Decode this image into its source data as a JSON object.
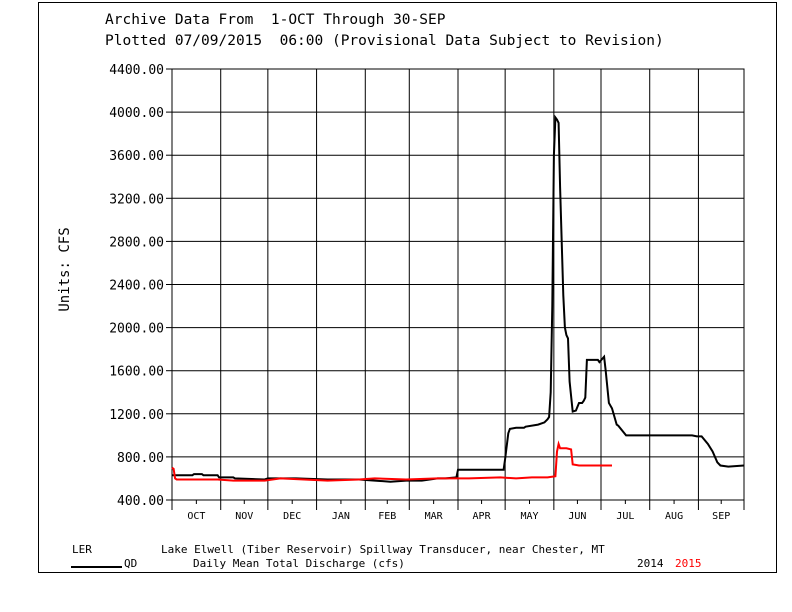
{
  "header": {
    "line1": "Archive Data From  1-OCT Through 30-SEP",
    "line2": "Plotted 07/09/2015  06:00 (Provisional Data Subject to Revision)"
  },
  "footer": {
    "station_code": "LER",
    "station_name": "Lake Elwell (Tiber Reservoir) Spillway Transducer, near Chester, MT",
    "param_code": "QD",
    "param_name": "Daily Mean Total Discharge (cfs)",
    "year_2014": "2014",
    "year_2015": "2015"
  },
  "chart_data": {
    "type": "line",
    "ylabel": "Units: CFS",
    "ylim": [
      400,
      4400
    ],
    "yticks": [
      "400.00",
      "800.00",
      "1200.00",
      "1600.00",
      "2000.00",
      "2400.00",
      "2800.00",
      "3200.00",
      "3600.00",
      "4000.00",
      "4400.00"
    ],
    "months": [
      "OCT",
      "NOV",
      "DEC",
      "JAN",
      "FEB",
      "MAR",
      "APR",
      "MAY",
      "JUN",
      "JUL",
      "AUG",
      "SEP"
    ],
    "x_unit": "day of water year (1 = 1-OCT)",
    "grid": true,
    "colors": {
      "2014": "#000000",
      "2015": "#ff0000"
    },
    "series": [
      {
        "name": "2014",
        "color": "#000000",
        "x": [
          1,
          14,
          15,
          20,
          21,
          30,
          31,
          40,
          41,
          60,
          62,
          80,
          100,
          120,
          130,
          140,
          150,
          152,
          160,
          165,
          170,
          175,
          182,
          183,
          200,
          212,
          213,
          215,
          216,
          220,
          225,
          226,
          234,
          238,
          240,
          241,
          242,
          243,
          244,
          245,
          246,
          247,
          248,
          250,
          251,
          252,
          253,
          254,
          256,
          258,
          260,
          262,
          263,
          264,
          265,
          270,
          272,
          273,
          276,
          277,
          279,
          281,
          284,
          285,
          290,
          300,
          320,
          332,
          335,
          338,
          342,
          345,
          348,
          350,
          355,
          365
        ],
        "y": [
          630,
          630,
          640,
          640,
          630,
          630,
          610,
          610,
          600,
          590,
          600,
          600,
          590,
          590,
          580,
          570,
          580,
          580,
          580,
          590,
          600,
          600,
          610,
          680,
          680,
          680,
          780,
          1020,
          1060,
          1070,
          1070,
          1080,
          1100,
          1120,
          1150,
          1170,
          1400,
          2200,
          3600,
          3950,
          3930,
          3900,
          3300,
          2300,
          2000,
          1930,
          1900,
          1500,
          1220,
          1230,
          1300,
          1300,
          1320,
          1350,
          1700,
          1700,
          1700,
          1680,
          1730,
          1600,
          1300,
          1250,
          1100,
          1090,
          1000,
          1000,
          1000,
          1000,
          990,
          990,
          920,
          850,
          750,
          720,
          710,
          720
        ]
      },
      {
        "name": "2015",
        "color": "#ff0000",
        "x": [
          1,
          2,
          3,
          4,
          30,
          40,
          60,
          70,
          100,
          120,
          130,
          150,
          170,
          180,
          190,
          210,
          220,
          230,
          240,
          245,
          246,
          247,
          248,
          250,
          252,
          255,
          256,
          260,
          270,
          281
        ],
        "y": [
          700,
          690,
          600,
          590,
          590,
          580,
          580,
          600,
          580,
          590,
          600,
          590,
          600,
          600,
          600,
          610,
          600,
          610,
          610,
          620,
          850,
          920,
          880,
          880,
          880,
          870,
          730,
          720,
          720,
          720
        ]
      }
    ]
  }
}
